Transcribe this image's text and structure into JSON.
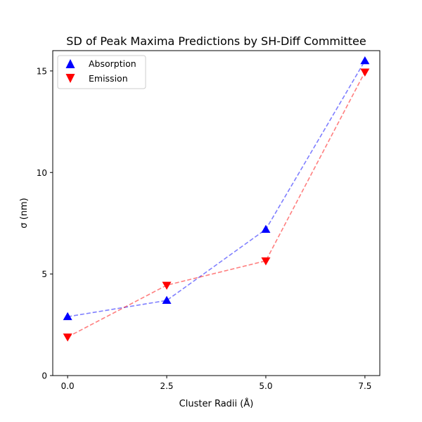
{
  "chart_data": {
    "type": "line",
    "title": "SD of Peak Maxima Predictions by SH-Diff Committee",
    "xlabel": "Cluster Radii (Å)",
    "ylabel": "σ (nm)",
    "x": [
      0.0,
      2.5,
      5.0,
      7.5
    ],
    "xticks": [
      "0.0",
      "2.5",
      "5.0",
      "7.5"
    ],
    "yticks": [
      "0",
      "5",
      "10",
      "15"
    ],
    "xlim": [
      -0.375,
      7.875
    ],
    "ylim": [
      0,
      16
    ],
    "grid": false,
    "legend_position": "top-left",
    "series": [
      {
        "name": "Absorption",
        "marker": "triangle-up",
        "color": "#0000ff",
        "line_style": "dashed",
        "values": [
          2.9,
          3.7,
          7.2,
          15.5
        ]
      },
      {
        "name": "Emission",
        "marker": "triangle-down",
        "color": "#ff0000",
        "line_style": "dashed",
        "values": [
          1.9,
          4.45,
          5.65,
          14.95
        ]
      }
    ]
  }
}
